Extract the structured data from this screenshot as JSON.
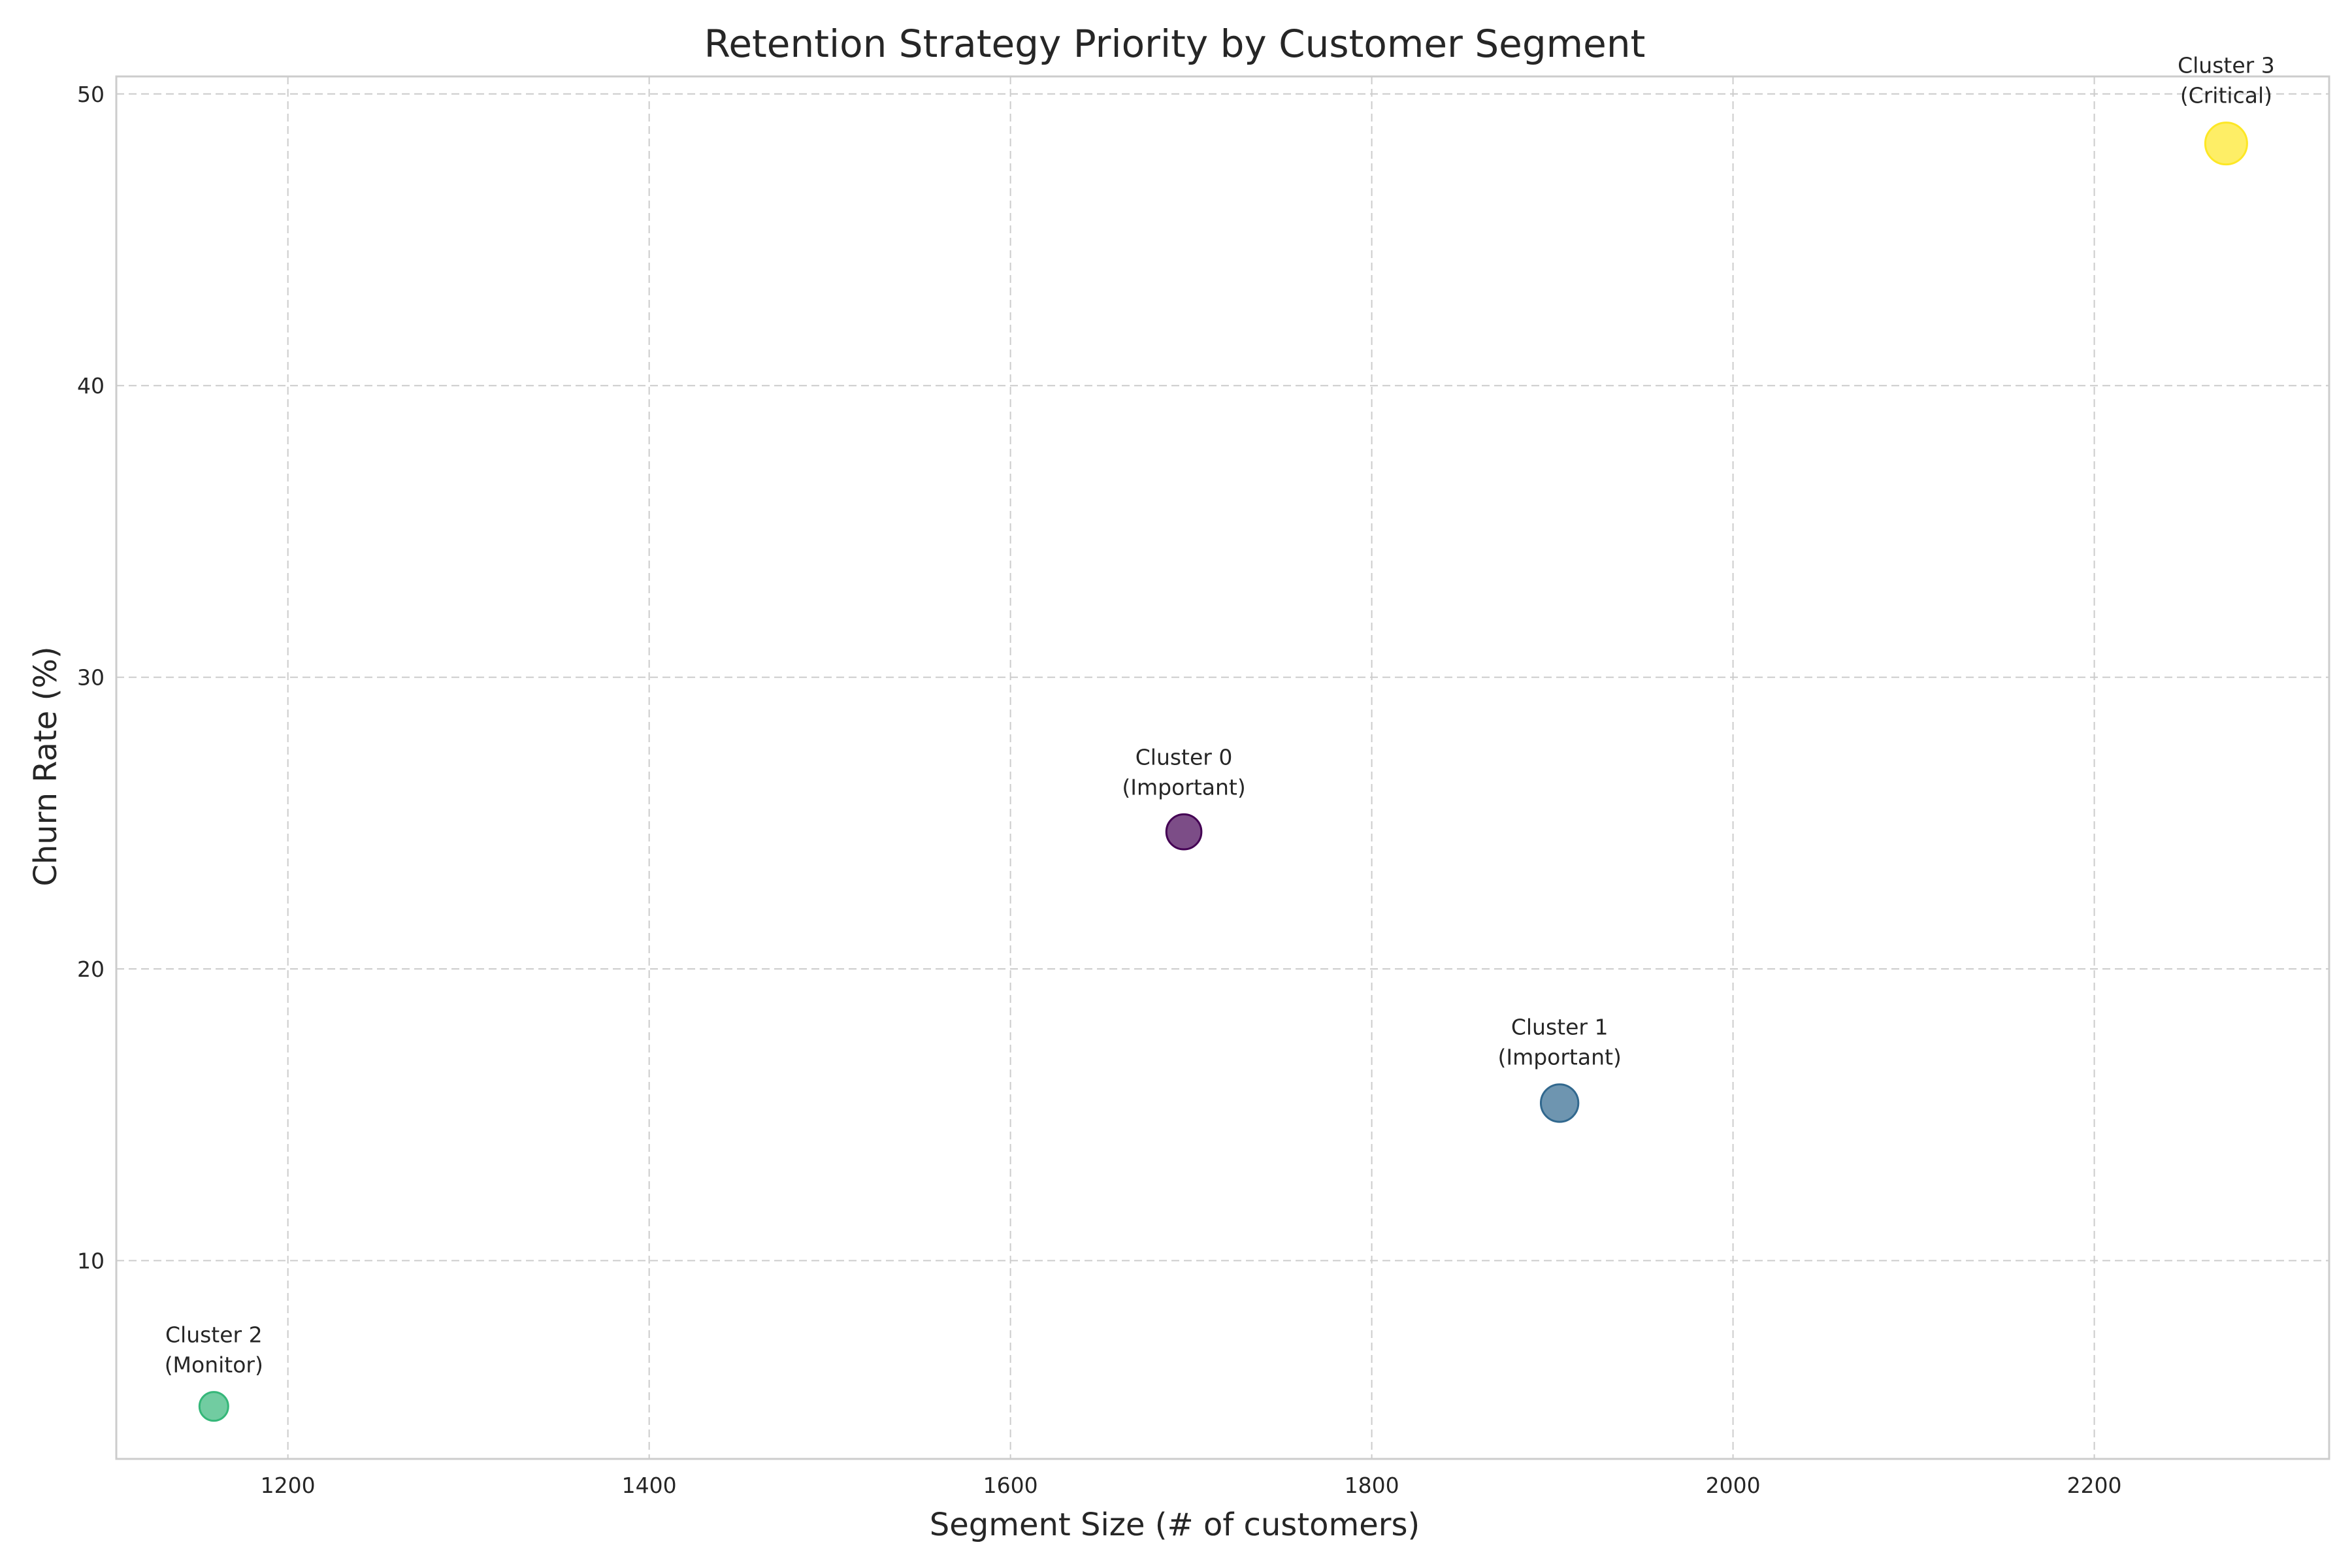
{
  "chart_data": {
    "type": "scatter",
    "title": "Retention Strategy Priority by Customer Segment",
    "xlabel": "Segment Size (# of customers)",
    "ylabel": "Churn Rate (%)",
    "xlim": [
      1105,
      2330
    ],
    "ylim": [
      3.2,
      50.6
    ],
    "xticks": [
      1200,
      1400,
      1600,
      1800,
      2000,
      2200
    ],
    "yticks": [
      10,
      20,
      30,
      40,
      50
    ],
    "grid": true,
    "points": [
      {
        "cluster": "Cluster 0",
        "priority": "(Important)",
        "x": 1696,
        "y": 24.7,
        "color": "#440154"
      },
      {
        "cluster": "Cluster 1",
        "priority": "(Important)",
        "x": 1904,
        "y": 15.4,
        "color": "#31688e"
      },
      {
        "cluster": "Cluster 2",
        "priority": "(Monitor)",
        "x": 1159,
        "y": 5.0,
        "color": "#35b779"
      },
      {
        "cluster": "Cluster 3",
        "priority": "(Critical)",
        "x": 2273,
        "y": 48.3,
        "color": "#fde725"
      }
    ]
  }
}
